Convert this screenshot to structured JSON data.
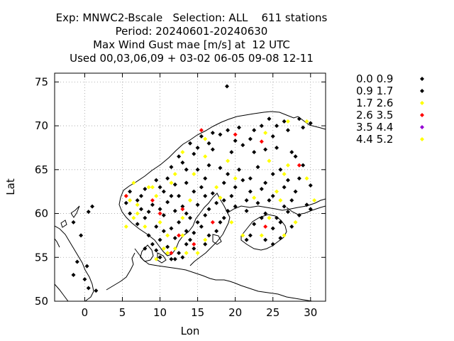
{
  "chart_data": {
    "type": "scatter",
    "title_lines": [
      "Exp: MNWC2-Bscale   Selection: ALL    611 stations",
      "Period: 20240601-20240630",
      "Max Wind Gust mae [m/s] at  12 UTC",
      "Used 00,03,06,09 + 03-02 06-05 09-08 12-11"
    ],
    "xlabel": "Lon",
    "ylabel": "Lat",
    "xlim": [
      -4,
      32
    ],
    "ylim": [
      50,
      76
    ],
    "xticks": [
      0,
      5,
      10,
      15,
      20,
      25,
      30
    ],
    "yticks": [
      50,
      55,
      60,
      65,
      70,
      75
    ],
    "grid": true,
    "legend_position": "right",
    "series": [
      {
        "name": "0.0 0.9",
        "color": "#000000",
        "points": [
          [
            18.9,
            74.5
          ],
          [
            24.5,
            70.8
          ],
          [
            26.5,
            70.5
          ],
          [
            28.5,
            70.8
          ],
          [
            30.0,
            70.3
          ],
          [
            23.5,
            70.0
          ],
          [
            20.5,
            69.8
          ],
          [
            19.0,
            69.5
          ],
          [
            17.0,
            69.2
          ],
          [
            15.5,
            68.8
          ],
          [
            14.0,
            68.0
          ],
          [
            16.5,
            68.0
          ],
          [
            20.0,
            68.3
          ],
          [
            22.0,
            68.5
          ],
          [
            25.0,
            68.8
          ],
          [
            27.0,
            69.5
          ],
          [
            29.0,
            69.8
          ],
          [
            12.5,
            66.5
          ],
          [
            14.5,
            66.8
          ],
          [
            17.0,
            67.3
          ],
          [
            19.5,
            67.0
          ],
          [
            22.5,
            67.0
          ],
          [
            25.5,
            67.5
          ],
          [
            28.0,
            66.5
          ],
          [
            11.5,
            65.3
          ],
          [
            13.0,
            65.8
          ],
          [
            15.0,
            65.0
          ],
          [
            18.0,
            65.2
          ],
          [
            20.5,
            65.0
          ],
          [
            23.0,
            65.3
          ],
          [
            26.0,
            65.0
          ],
          [
            29.0,
            65.5
          ],
          [
            9.5,
            63.8
          ],
          [
            11.0,
            64.0
          ],
          [
            13.5,
            63.5
          ],
          [
            16.0,
            64.0
          ],
          [
            18.5,
            63.5
          ],
          [
            21.0,
            63.8
          ],
          [
            24.0,
            63.5
          ],
          [
            27.0,
            63.8
          ],
          [
            30.0,
            63.2
          ],
          [
            6.0,
            62.5
          ],
          [
            8.0,
            62.8
          ],
          [
            10.5,
            62.5
          ],
          [
            12.5,
            62.0
          ],
          [
            14.5,
            62.5
          ],
          [
            17.0,
            62.3
          ],
          [
            19.5,
            62.0
          ],
          [
            22.0,
            62.5
          ],
          [
            25.0,
            62.0
          ],
          [
            28.0,
            62.5
          ],
          [
            5.5,
            61.2
          ],
          [
            7.0,
            61.5
          ],
          [
            9.0,
            61.0
          ],
          [
            11.0,
            61.3
          ],
          [
            13.0,
            60.8
          ],
          [
            15.0,
            61.0
          ],
          [
            17.5,
            61.2
          ],
          [
            20.0,
            60.8
          ],
          [
            23.0,
            61.2
          ],
          [
            26.5,
            60.8
          ],
          [
            29.5,
            61.0
          ],
          [
            6.0,
            60.0
          ],
          [
            8.5,
            60.2
          ],
          [
            10.5,
            59.8
          ],
          [
            12.0,
            60.3
          ],
          [
            14.0,
            59.5
          ],
          [
            16.0,
            59.8
          ],
          [
            18.5,
            59.5
          ],
          [
            21.5,
            60.3
          ],
          [
            24.0,
            60.0
          ],
          [
            27.0,
            60.2
          ],
          [
            30.0,
            60.5
          ],
          [
            7.0,
            58.8
          ],
          [
            9.5,
            58.5
          ],
          [
            11.5,
            58.3
          ],
          [
            13.5,
            58.0
          ],
          [
            15.5,
            58.5
          ],
          [
            17.5,
            58.0
          ],
          [
            22.5,
            58.8
          ],
          [
            25.0,
            58.3
          ],
          [
            27.5,
            58.5
          ],
          [
            8.5,
            57.5
          ],
          [
            10.0,
            57.0
          ],
          [
            12.0,
            57.2
          ],
          [
            14.0,
            57.0
          ],
          [
            16.5,
            57.5
          ],
          [
            22.0,
            57.5
          ],
          [
            24.0,
            57.0
          ],
          [
            26.0,
            57.2
          ],
          [
            8.0,
            56.0
          ],
          [
            9.5,
            55.8
          ],
          [
            11.0,
            56.2
          ],
          [
            12.5,
            55.5
          ],
          [
            14.5,
            56.0
          ],
          [
            16.0,
            56.5
          ],
          [
            10.0,
            55.0
          ],
          [
            11.5,
            54.8
          ],
          [
            13.0,
            55.0
          ],
          [
            1.0,
            60.8
          ],
          [
            0.5,
            60.2
          ],
          [
            -1.5,
            59.0
          ],
          [
            -0.5,
            57.5
          ],
          [
            -1.0,
            54.5
          ],
          [
            -1.5,
            53.0
          ],
          [
            0.0,
            52.5
          ],
          [
            0.5,
            51.5
          ],
          [
            1.5,
            51.2
          ],
          [
            0.3,
            54.0
          ]
        ]
      },
      {
        "name": "0.9 1.7",
        "color": "#000000",
        "points": [
          [
            25.5,
            70.0
          ],
          [
            22.5,
            69.5
          ],
          [
            18.0,
            69.0
          ],
          [
            15.0,
            67.5
          ],
          [
            21.0,
            67.8
          ],
          [
            24.0,
            67.3
          ],
          [
            27.5,
            67.0
          ],
          [
            13.5,
            65.0
          ],
          [
            16.5,
            65.5
          ],
          [
            19.0,
            64.5
          ],
          [
            22.0,
            64.0
          ],
          [
            25.0,
            64.5
          ],
          [
            28.5,
            64.0
          ],
          [
            10.0,
            63.0
          ],
          [
            12.0,
            63.3
          ],
          [
            15.5,
            63.0
          ],
          [
            20.0,
            63.0
          ],
          [
            23.5,
            62.8
          ],
          [
            26.5,
            63.0
          ],
          [
            7.5,
            62.0
          ],
          [
            11.5,
            62.0
          ],
          [
            16.0,
            62.0
          ],
          [
            18.5,
            61.5
          ],
          [
            21.5,
            61.5
          ],
          [
            24.5,
            61.5
          ],
          [
            27.5,
            61.5
          ],
          [
            7.5,
            60.5
          ],
          [
            10.0,
            60.5
          ],
          [
            13.5,
            60.0
          ],
          [
            16.5,
            60.5
          ],
          [
            19.0,
            60.3
          ],
          [
            25.5,
            59.5
          ],
          [
            28.5,
            59.8
          ],
          [
            8.0,
            59.5
          ],
          [
            12.5,
            59.0
          ],
          [
            15.0,
            59.0
          ],
          [
            18.0,
            59.0
          ],
          [
            23.5,
            59.5
          ],
          [
            26.0,
            59.0
          ],
          [
            10.5,
            58.0
          ],
          [
            14.5,
            57.8
          ],
          [
            21.5,
            57.0
          ],
          [
            25.0,
            56.5
          ],
          [
            9.0,
            56.5
          ],
          [
            13.5,
            56.5
          ],
          [
            12.0,
            54.8
          ]
        ]
      },
      {
        "name": "1.7 2.6",
        "color": "#ffff00",
        "points": [
          [
            27.0,
            70.5
          ],
          [
            29.5,
            70.5
          ],
          [
            24.0,
            69.2
          ],
          [
            16.0,
            68.5
          ],
          [
            13.0,
            67.0
          ],
          [
            16.0,
            66.5
          ],
          [
            19.0,
            66.0
          ],
          [
            24.5,
            66.0
          ],
          [
            27.0,
            65.5
          ],
          [
            12.0,
            64.5
          ],
          [
            14.5,
            64.5
          ],
          [
            20.0,
            64.0
          ],
          [
            26.5,
            64.5
          ],
          [
            29.5,
            64.0
          ],
          [
            6.5,
            63.5
          ],
          [
            9.0,
            63.0
          ],
          [
            11.5,
            63.5
          ],
          [
            17.5,
            63.0
          ],
          [
            25.5,
            62.5
          ],
          [
            5.5,
            62.0
          ],
          [
            7.0,
            61.0
          ],
          [
            9.5,
            62.0
          ],
          [
            14.0,
            61.5
          ],
          [
            18.0,
            61.8
          ],
          [
            22.5,
            61.8
          ],
          [
            26.0,
            61.5
          ],
          [
            30.5,
            61.5
          ],
          [
            6.5,
            59.5
          ],
          [
            8.0,
            58.5
          ],
          [
            10.0,
            59.0
          ],
          [
            13.0,
            59.5
          ],
          [
            19.5,
            59.0
          ],
          [
            24.5,
            59.5
          ],
          [
            28.0,
            59.0
          ],
          [
            11.0,
            57.5
          ],
          [
            13.0,
            57.5
          ],
          [
            16.0,
            57.0
          ],
          [
            21.0,
            57.5
          ],
          [
            23.5,
            57.5
          ],
          [
            26.5,
            57.5
          ],
          [
            10.5,
            56.0
          ],
          [
            12.0,
            56.0
          ],
          [
            13.5,
            55.5
          ],
          [
            15.0,
            55.5
          ],
          [
            9.5,
            54.8
          ],
          [
            11.0,
            55.5
          ],
          [
            7.0,
            60.0
          ],
          [
            5.5,
            58.5
          ],
          [
            8.5,
            63.0
          ],
          [
            6.0,
            61.5
          ]
        ]
      },
      {
        "name": "2.6 3.5",
        "color": "#ff0000",
        "points": [
          [
            15.5,
            69.5
          ],
          [
            20.0,
            69.0
          ],
          [
            23.5,
            68.2
          ],
          [
            28.5,
            65.5
          ],
          [
            9.0,
            61.5
          ],
          [
            5.5,
            62.0
          ],
          [
            13.0,
            60.5
          ],
          [
            17.0,
            59.0
          ],
          [
            24.0,
            58.5
          ],
          [
            11.5,
            55.5
          ],
          [
            14.5,
            56.5
          ],
          [
            12.5,
            57.5
          ],
          [
            10.0,
            60.0
          ]
        ]
      },
      {
        "name": "3.5 4.4",
        "color": "#9400d3",
        "points": []
      },
      {
        "name": "4.4 5.2",
        "color": "#ffff00",
        "points": []
      }
    ]
  }
}
